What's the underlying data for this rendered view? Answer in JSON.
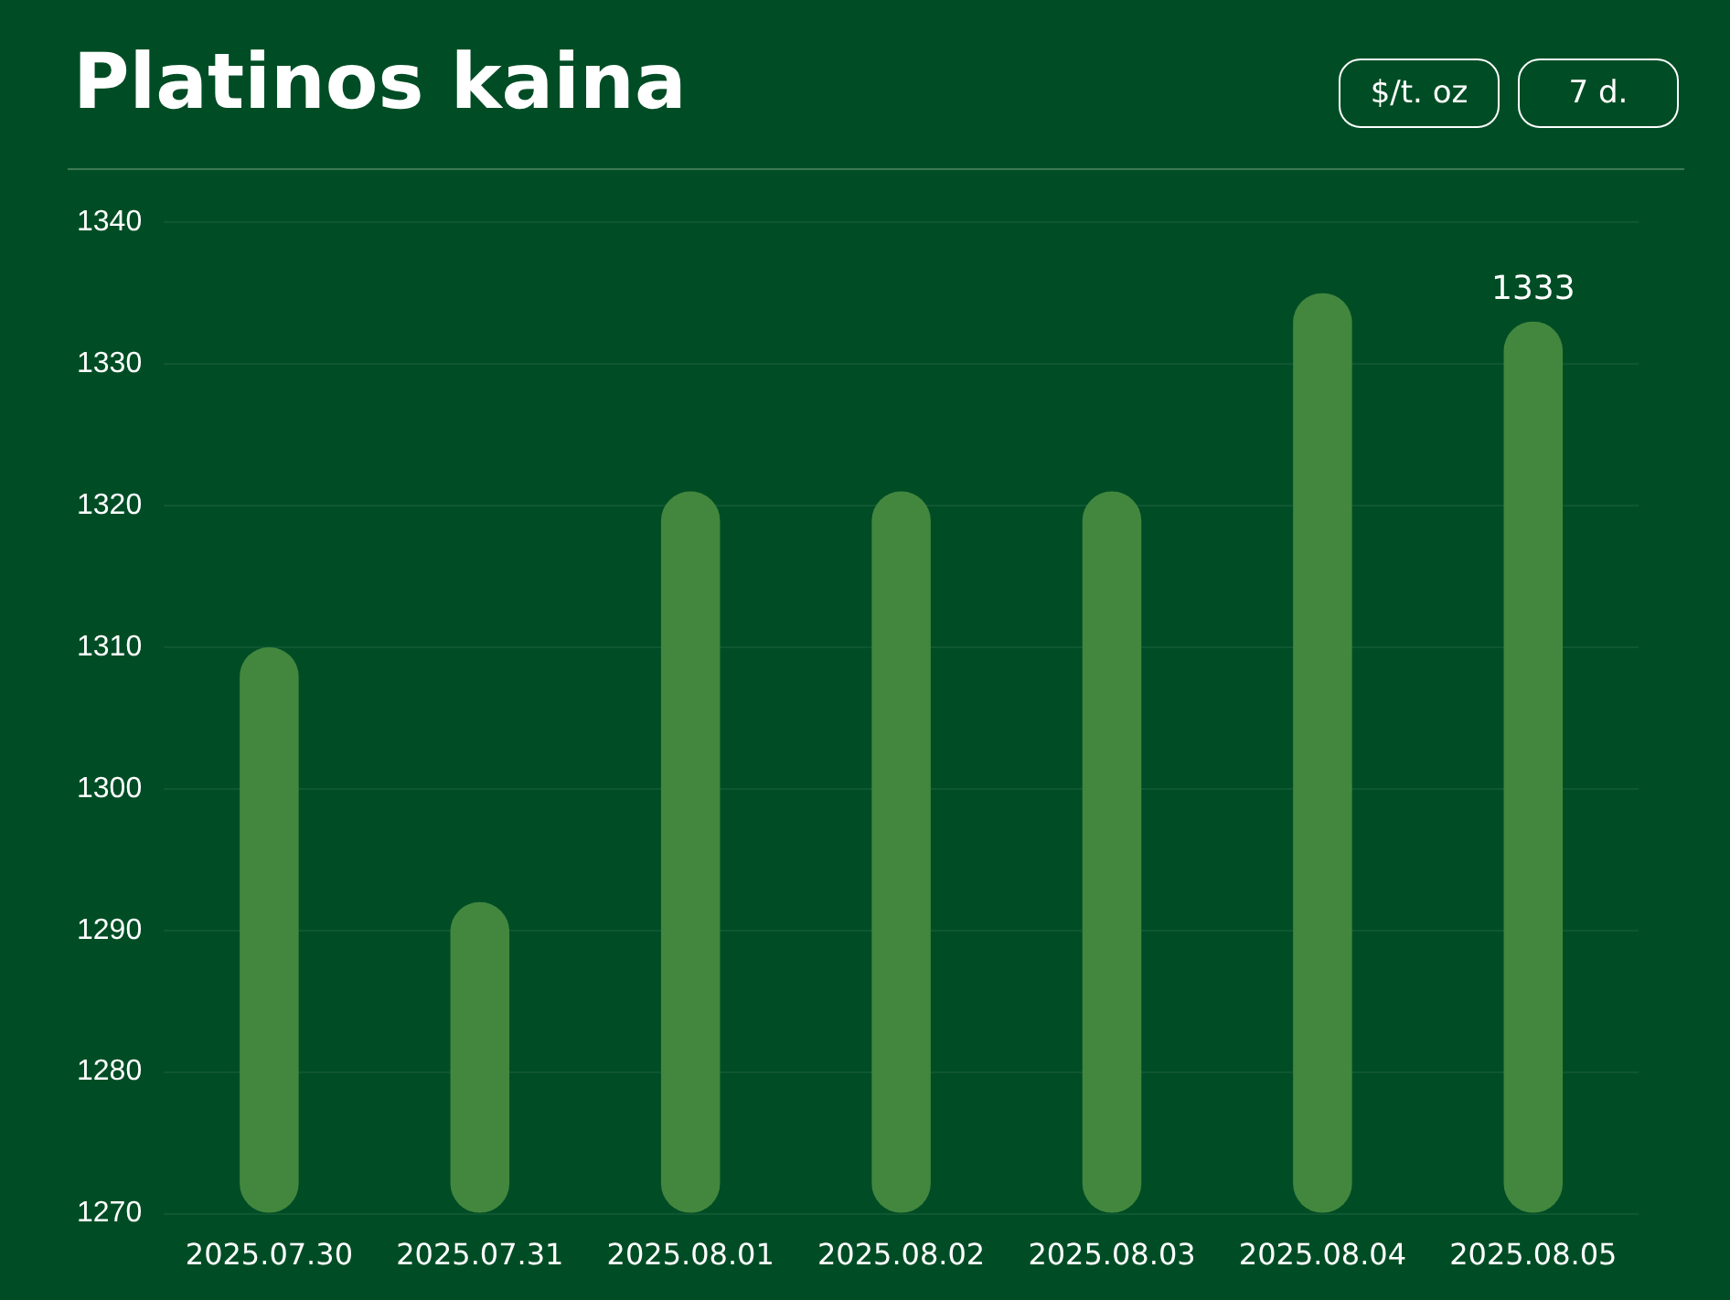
{
  "chart_data": {
    "type": "bar",
    "title": "Platinos kaina",
    "annotations": [
      "$/t. oz",
      "7 d."
    ],
    "categories": [
      "2025.07.30",
      "2025.07.31",
      "2025.08.01",
      "2025.08.02",
      "2025.08.03",
      "2025.08.04",
      "2025.08.05"
    ],
    "values": [
      1310,
      1292,
      1321,
      1321,
      1321,
      1335,
      1333
    ],
    "value_labels": [
      null,
      null,
      null,
      null,
      null,
      null,
      "1333"
    ],
    "color": "#43873f",
    "ylim": [
      1270,
      1340
    ],
    "yticks": [
      1270,
      1280,
      1290,
      1300,
      1310,
      1320,
      1330,
      1340
    ],
    "grid": "y"
  }
}
